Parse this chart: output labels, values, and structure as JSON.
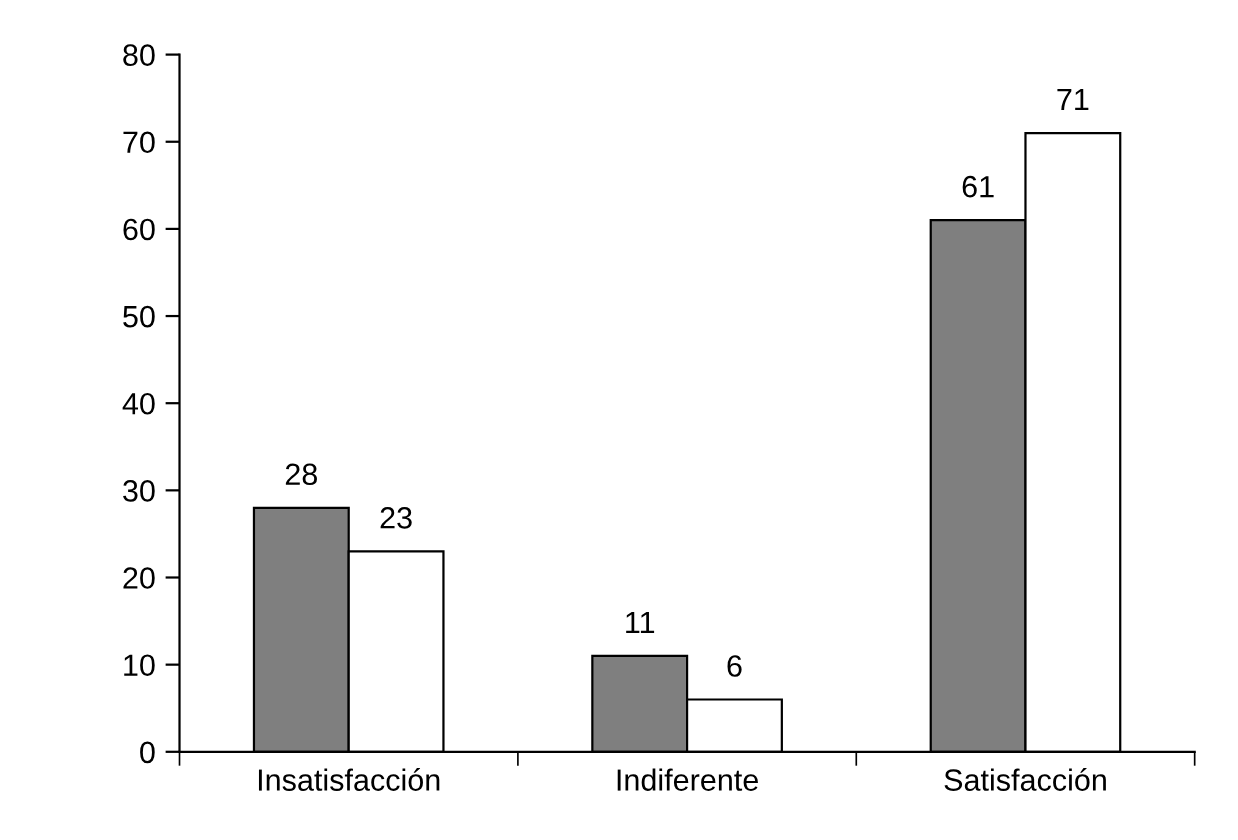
{
  "chart_data": {
    "type": "bar",
    "categories": [
      "Insatisfacción",
      "Indiferente",
      "Satisfacción"
    ],
    "series": [
      {
        "color": "#7f7f7f",
        "values": [
          28,
          11,
          61
        ]
      },
      {
        "color": "#ffffff",
        "values": [
          23,
          6,
          71
        ]
      }
    ],
    "ylim": [
      0,
      80
    ],
    "yticks": [
      0,
      10,
      20,
      30,
      40,
      50,
      60,
      70,
      80
    ],
    "data_labels": true,
    "grid": false,
    "legend": false
  }
}
